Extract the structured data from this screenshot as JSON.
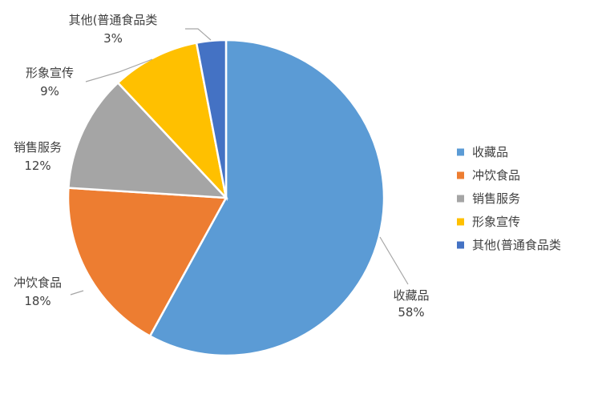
{
  "chart_data": {
    "type": "pie",
    "title": "",
    "start_angle_deg": 0,
    "direction": "clockwise",
    "legend_position": "right",
    "slices": [
      {
        "name": "收藏品",
        "value": 58,
        "label": "58%",
        "color": "#5b9bd5"
      },
      {
        "name": "冲饮食品",
        "value": 18,
        "label": "18%",
        "color": "#ed7d31"
      },
      {
        "name": "销售服务",
        "value": 12,
        "label": "12%",
        "color": "#a5a5a5"
      },
      {
        "name": "形象宣传",
        "value": 9,
        "label": "9%",
        "color": "#ffc000"
      },
      {
        "name": "其他(普通食品类",
        "value": 3,
        "label": "3%",
        "color": "#4472c4"
      }
    ]
  }
}
